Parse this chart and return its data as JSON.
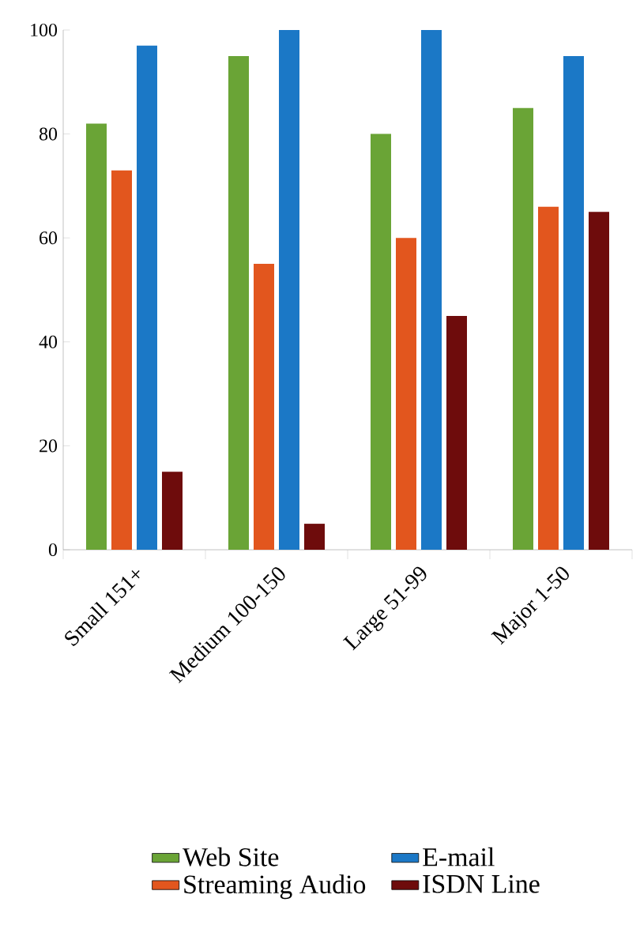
{
  "chart_data": {
    "type": "bar",
    "categories": [
      "Small 151+",
      "Medium 100-150",
      "Large 51-99",
      "Major 1-50"
    ],
    "series": [
      {
        "name": "Web Site",
        "color": "#6aa436",
        "values": [
          82,
          95,
          80,
          85
        ]
      },
      {
        "name": "Streaming Audio",
        "color": "#e2561e",
        "values": [
          73,
          55,
          60,
          66
        ]
      },
      {
        "name": "E-mail",
        "color": "#1b78c6",
        "values": [
          97,
          100,
          100,
          95
        ]
      },
      {
        "name": "ISDN Line",
        "color": "#6e0c0c",
        "values": [
          15,
          5,
          45,
          65
        ]
      }
    ],
    "ylim": [
      0,
      100
    ],
    "yticks": [
      0,
      20,
      40,
      60,
      80,
      100
    ],
    "grid": false,
    "legend": "bottom"
  }
}
